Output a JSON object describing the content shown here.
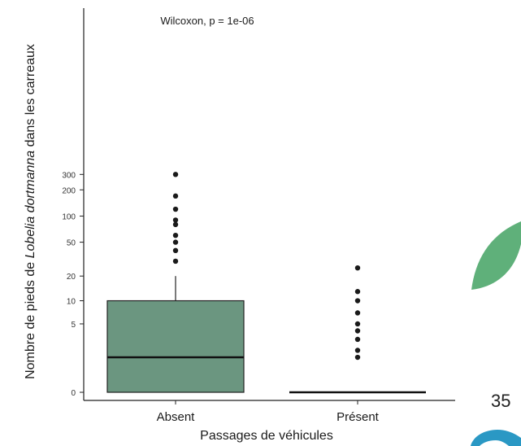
{
  "chart_data": {
    "type": "boxplot",
    "annotation": "Wilcoxon, p = 1e-06",
    "ylabel": {
      "prefix": "Nombre de pieds de ",
      "italic": "Lobelia dortmanna",
      "suffix": " dans les carreaux"
    },
    "xlabel": "Passages de véhicules",
    "y_scale": "pseudo-log",
    "y_ticks": [
      0,
      5,
      10,
      20,
      50,
      100,
      200,
      300
    ],
    "categories": [
      "Absent",
      "Présent"
    ],
    "boxes": [
      {
        "category": "Absent",
        "q1": 0,
        "median": 1.5,
        "q3": 10,
        "whisker_low": 0,
        "whisker_high": 20,
        "outliers": [
          300,
          170,
          120,
          90,
          80,
          60,
          50,
          40,
          30
        ]
      },
      {
        "category": "Présent",
        "q1": 0,
        "median": 0,
        "q3": 0,
        "whisker_low": 0,
        "whisker_high": 0,
        "outliers": [
          25,
          13,
          10,
          7,
          5,
          4,
          3,
          2,
          1.5
        ]
      }
    ],
    "box_color": "#6b9680",
    "grid": false
  },
  "page_number": "35",
  "decor": {
    "leaf_color": "#5fb07a",
    "logo_color": "#2a98c4"
  }
}
